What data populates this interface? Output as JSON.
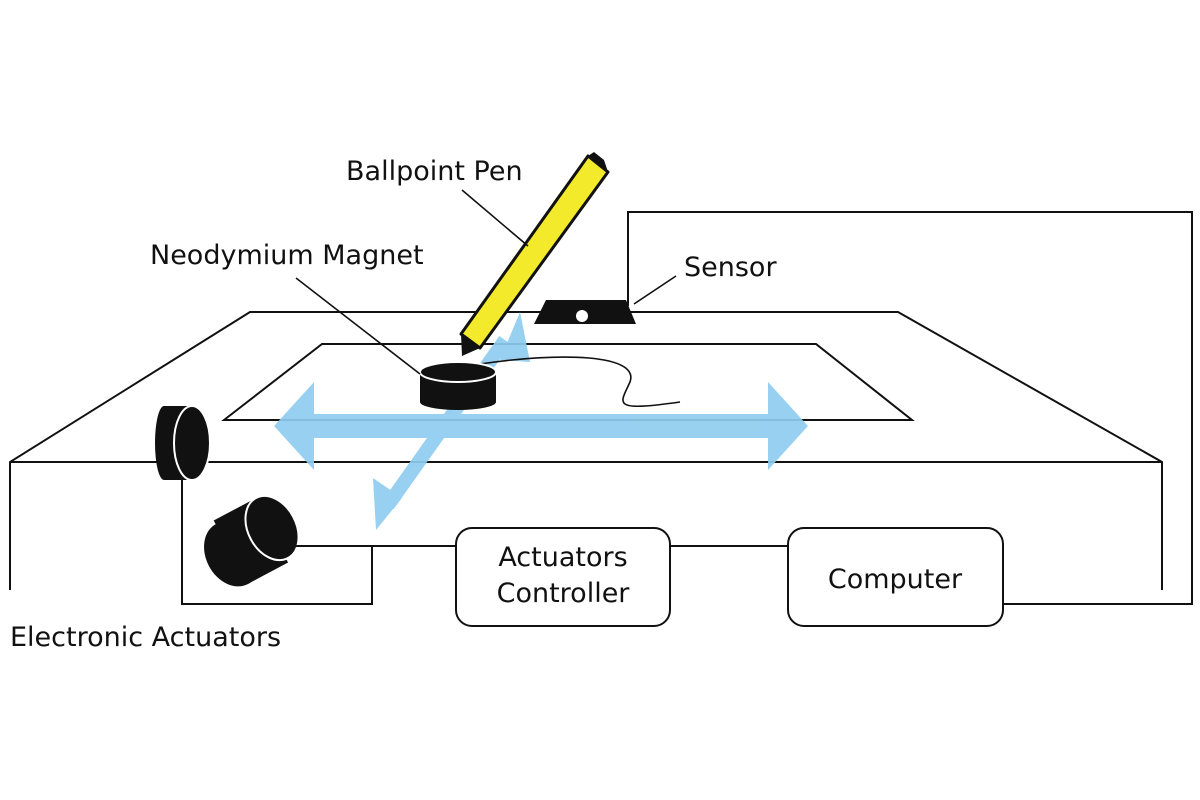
{
  "labels": {
    "pen": "Ballpoint Pen",
    "magnet": "Neodymium Magnet",
    "sensor": "Sensor",
    "actuators": "Electronic Actuators",
    "controller_line1": "Actuators",
    "controller_line2": "Controller",
    "computer": "Computer"
  },
  "colors": {
    "arrow": "#8fcdef",
    "pen_body": "#f2ea2a",
    "ink": "#111111"
  }
}
